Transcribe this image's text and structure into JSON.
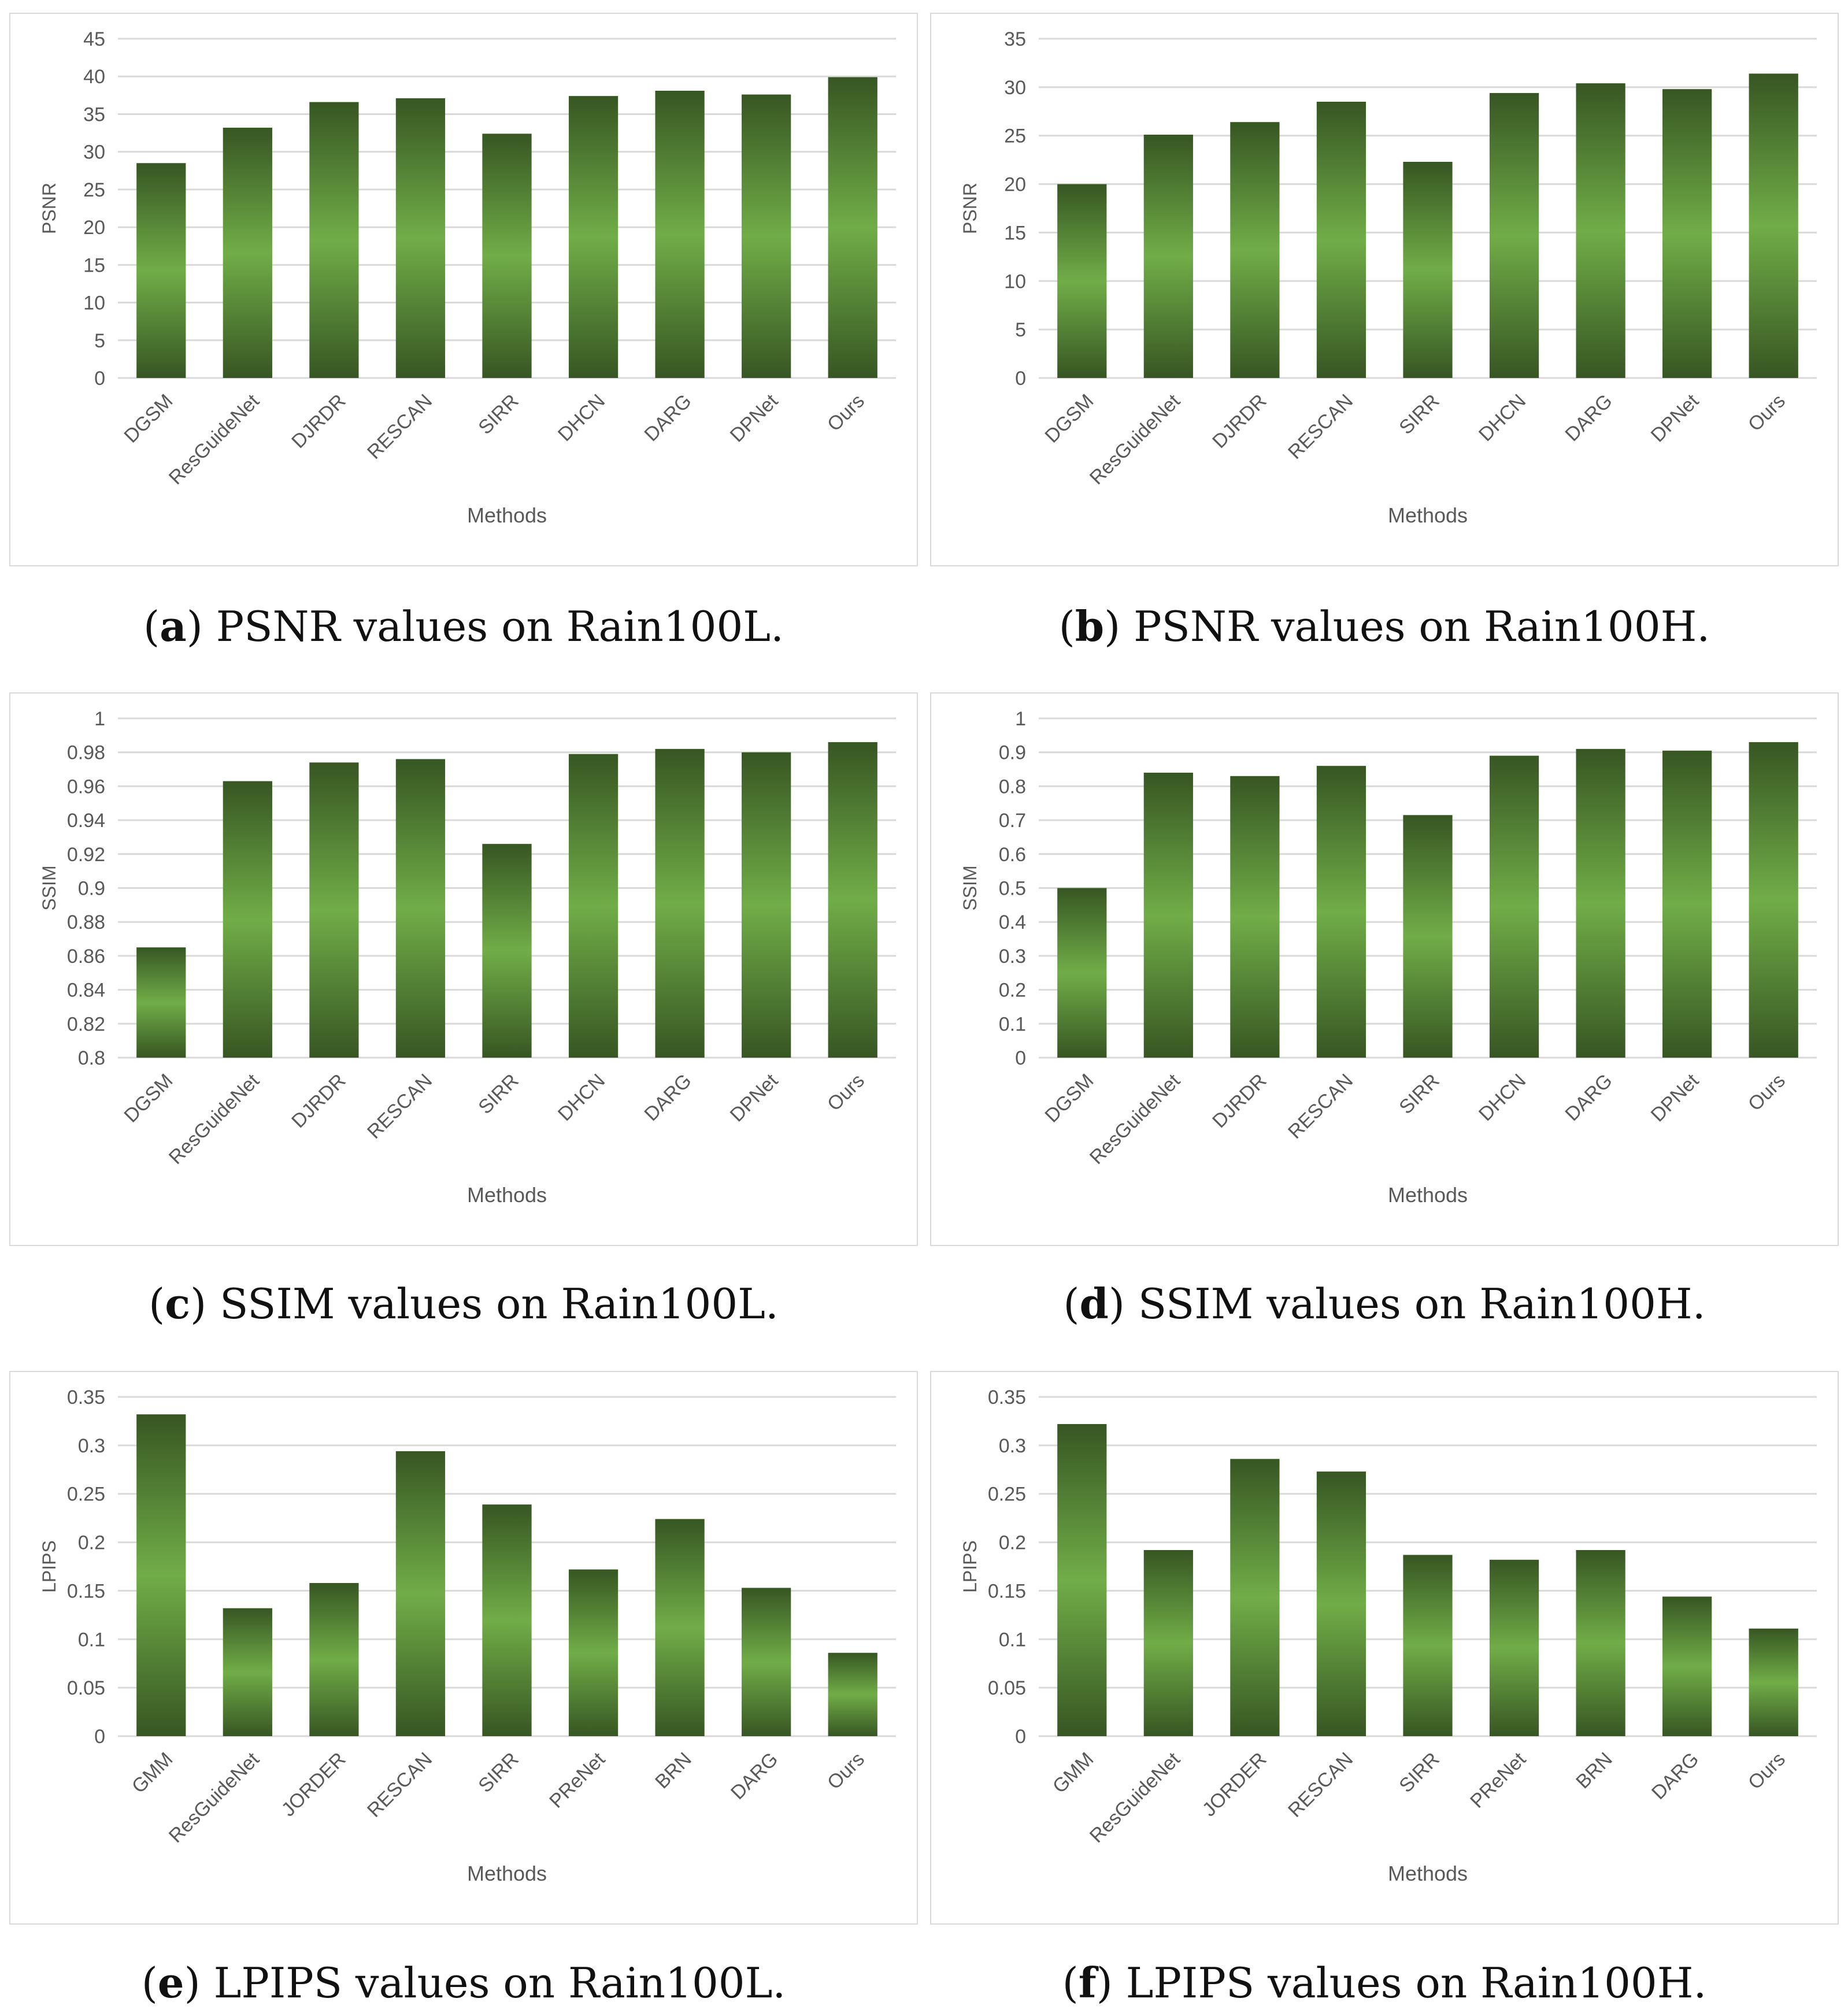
{
  "colors": {
    "bar_dark": "#375623",
    "bar_light": "#70ad47",
    "gridline": "#d9d9d9",
    "axis_text": "#595959"
  },
  "chart_data": [
    {
      "id": "a",
      "type": "bar",
      "categories": [
        "DGSM",
        "ResGuideNet",
        "DJRDR",
        "RESCAN",
        "SIRR",
        "DHCN",
        "DARG",
        "DPNet",
        "Ours"
      ],
      "values": [
        28.5,
        33.2,
        36.6,
        37.1,
        32.4,
        37.4,
        38.1,
        37.6,
        39.9
      ],
      "xlabel": "Methods",
      "ylabel": "PSNR",
      "ylim": [
        0,
        45
      ],
      "yticks": [
        "0",
        "5",
        "10",
        "15",
        "20",
        "25",
        "30",
        "35",
        "40",
        "45"
      ],
      "caption_letter": "a",
      "caption_text": "PSNR values on Rain100L."
    },
    {
      "id": "b",
      "type": "bar",
      "categories": [
        "DGSM",
        "ResGuideNet",
        "DJRDR",
        "RESCAN",
        "SIRR",
        "DHCN",
        "DARG",
        "DPNet",
        "Ours"
      ],
      "values": [
        20.0,
        25.1,
        26.4,
        28.5,
        22.3,
        29.4,
        30.4,
        29.8,
        31.4
      ],
      "xlabel": "Methods",
      "ylabel": "PSNR",
      "ylim": [
        0,
        35
      ],
      "yticks": [
        "0",
        "5",
        "10",
        "15",
        "20",
        "25",
        "30",
        "35"
      ],
      "caption_letter": "b",
      "caption_text": "PSNR values on Rain100H."
    },
    {
      "id": "c",
      "type": "bar",
      "categories": [
        "DGSM",
        "ResGuideNet",
        "DJRDR",
        "RESCAN",
        "SIRR",
        "DHCN",
        "DARG",
        "DPNet",
        "Ours"
      ],
      "values": [
        0.865,
        0.963,
        0.974,
        0.976,
        0.926,
        0.979,
        0.982,
        0.98,
        0.986
      ],
      "xlabel": "Methods",
      "ylabel": "SSIM",
      "ylim": [
        0.8,
        1.0
      ],
      "yticks": [
        "0.8",
        "0.82",
        "0.84",
        "0.86",
        "0.88",
        "0.9",
        "0.92",
        "0.94",
        "0.96",
        "0.98",
        "1"
      ],
      "caption_letter": "c",
      "caption_text": "SSIM values on Rain100L."
    },
    {
      "id": "d",
      "type": "bar",
      "categories": [
        "DGSM",
        "ResGuideNet",
        "DJRDR",
        "RESCAN",
        "SIRR",
        "DHCN",
        "DARG",
        "DPNet",
        "Ours"
      ],
      "values": [
        0.5,
        0.84,
        0.83,
        0.86,
        0.715,
        0.89,
        0.91,
        0.905,
        0.93
      ],
      "xlabel": "Methods",
      "ylabel": "SSIM",
      "ylim": [
        0,
        1
      ],
      "yticks": [
        "0",
        "0.1",
        "0.2",
        "0.3",
        "0.4",
        "0.5",
        "0.6",
        "0.7",
        "0.8",
        "0.9",
        "1"
      ],
      "caption_letter": "d",
      "caption_text": "SSIM values on Rain100H."
    },
    {
      "id": "e",
      "type": "bar",
      "categories": [
        "GMM",
        "ResGuideNet",
        "JORDER",
        "RESCAN",
        "SIRR",
        "PReNet",
        "BRN",
        "DARG",
        "Ours"
      ],
      "values": [
        0.332,
        0.132,
        0.158,
        0.294,
        0.239,
        0.172,
        0.224,
        0.153,
        0.086
      ],
      "xlabel": "Methods",
      "ylabel": "LPIPS",
      "ylim": [
        0,
        0.35
      ],
      "yticks": [
        "0",
        "0.05",
        "0.1",
        "0.15",
        "0.2",
        "0.25",
        "0.3",
        "0.35"
      ],
      "caption_letter": "e",
      "caption_text": "LPIPS values on Rain100L."
    },
    {
      "id": "f",
      "type": "bar",
      "categories": [
        "GMM",
        "ResGuideNet",
        "JORDER",
        "RESCAN",
        "SIRR",
        "PReNet",
        "BRN",
        "DARG",
        "Ours"
      ],
      "values": [
        0.322,
        0.192,
        0.286,
        0.273,
        0.187,
        0.182,
        0.192,
        0.144,
        0.111
      ],
      "xlabel": "Methods",
      "ylabel": "LPIPS",
      "ylim": [
        0,
        0.35
      ],
      "yticks": [
        "0",
        "0.05",
        "0.1",
        "0.15",
        "0.2",
        "0.25",
        "0.3",
        "0.35"
      ],
      "caption_letter": "f",
      "caption_text": "LPIPS values on Rain100H."
    }
  ]
}
